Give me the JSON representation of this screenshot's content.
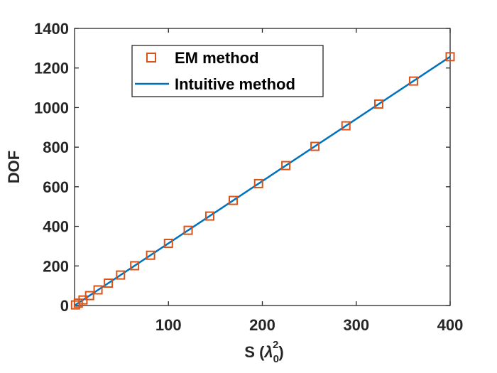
{
  "chart_data": {
    "type": "scatter+line",
    "title": "",
    "xlabel": {
      "prefix": "S (",
      "symbol": "λ",
      "sub": "0",
      "sup": "2",
      "suffix": ")"
    },
    "ylabel": "DOF",
    "xlim": [
      0,
      400
    ],
    "ylim": [
      0,
      1400
    ],
    "xticks": [
      100,
      200,
      300,
      400
    ],
    "yticks": [
      0,
      200,
      400,
      600,
      800,
      1000,
      1200,
      1400
    ],
    "grid": false,
    "legend_position": "top-left",
    "series": [
      {
        "name": "EM method",
        "kind": "markers",
        "marker": "square",
        "color": "#D95319",
        "x": [
          1,
          4,
          9,
          16,
          25,
          36,
          49,
          64,
          81,
          100,
          121,
          144,
          169,
          196,
          225,
          256,
          289,
          324,
          361,
          400
        ],
        "y": [
          3,
          12,
          28,
          50,
          79,
          113,
          154,
          201,
          254,
          314,
          380,
          452,
          531,
          616,
          707,
          804,
          908,
          1018,
          1134,
          1257
        ]
      },
      {
        "name": "Intuitive method",
        "kind": "line",
        "color": "#0072BD",
        "x": [
          0,
          400
        ],
        "y": [
          0,
          1257
        ]
      }
    ]
  }
}
